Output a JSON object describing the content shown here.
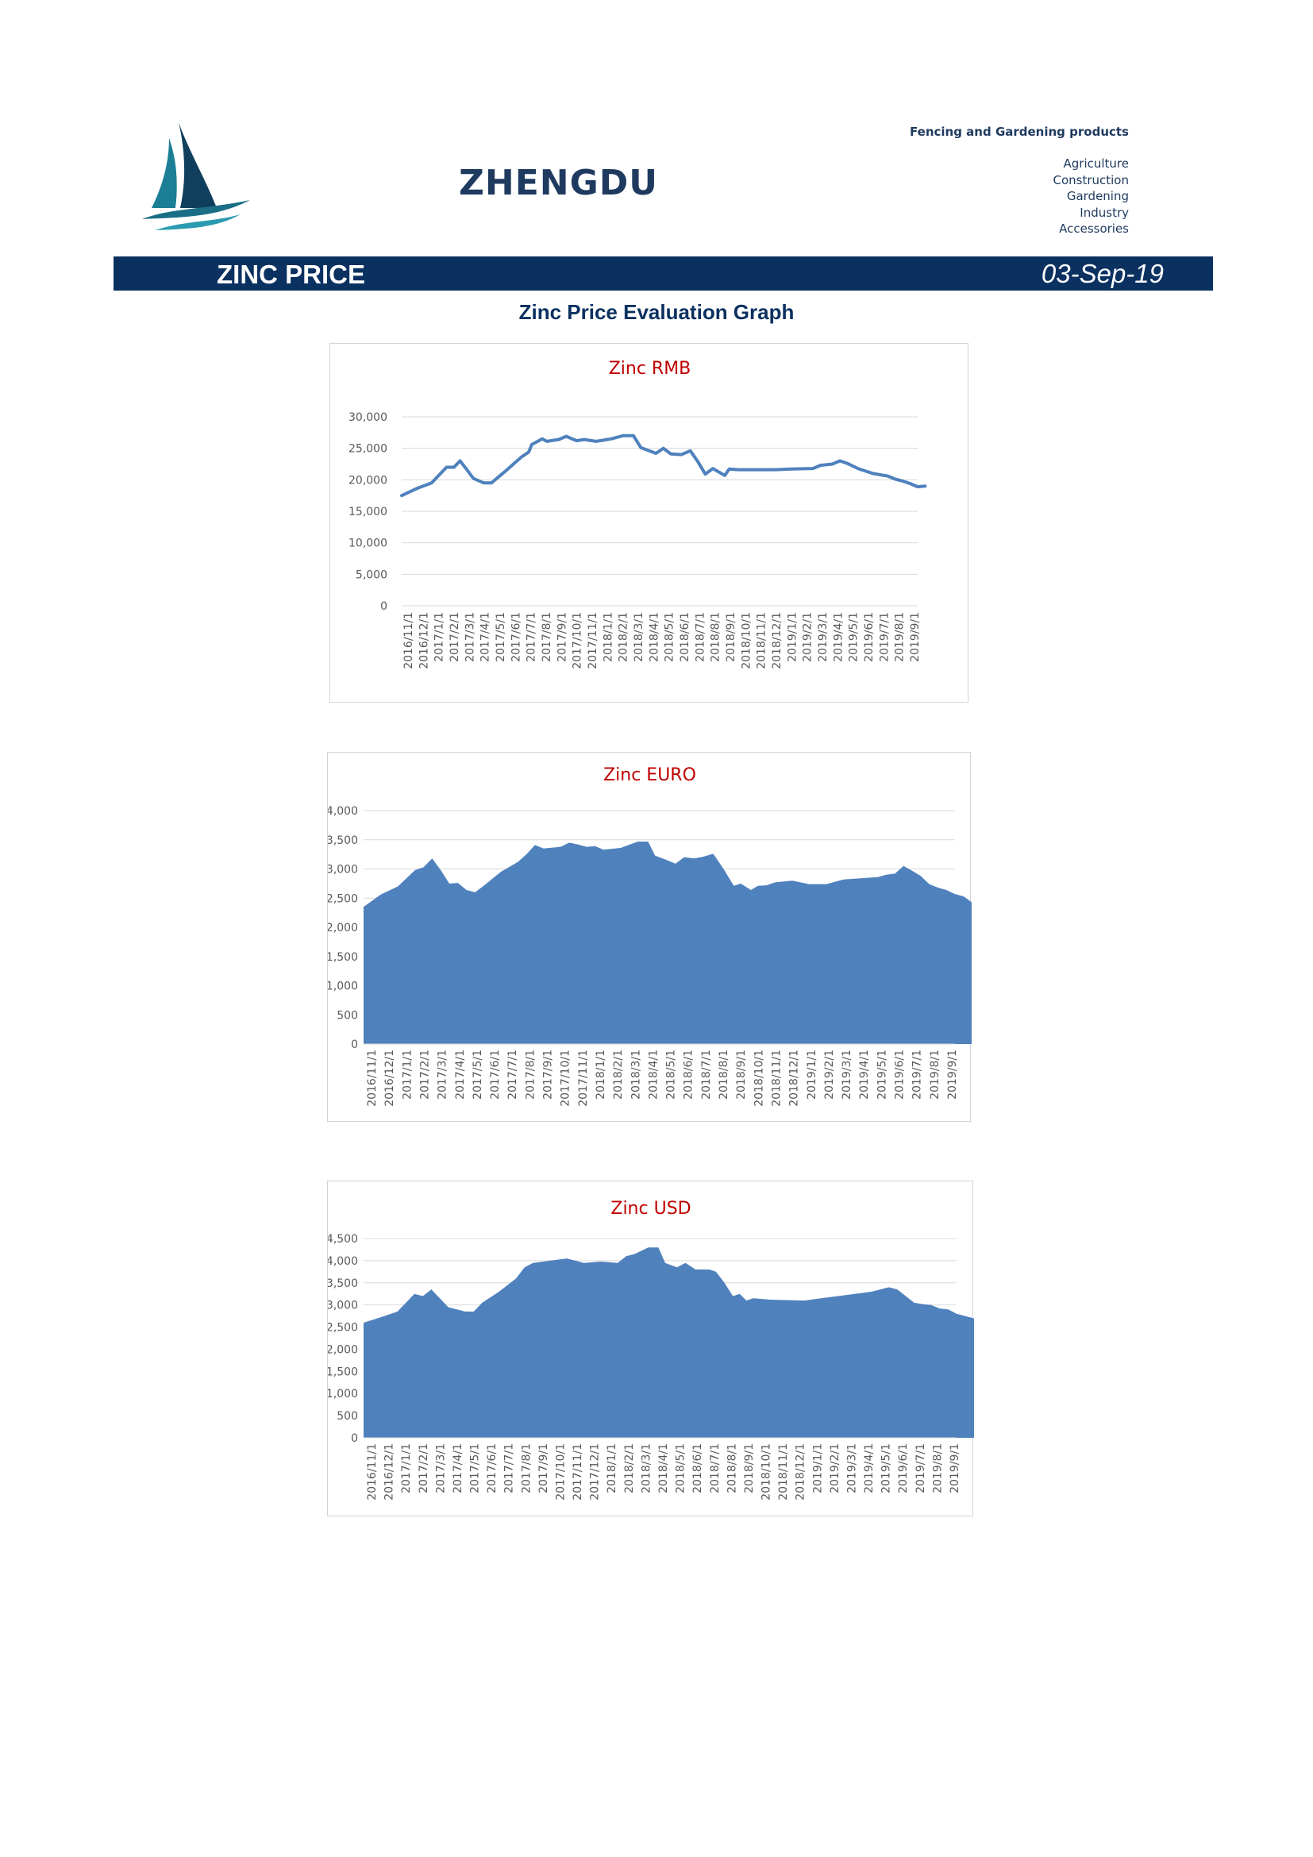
{
  "header": {
    "brand": "ZHENGDU",
    "tagline": "Fencing and Gardening products",
    "categories": [
      "Agriculture",
      "Construction",
      "Gardening",
      "Industry",
      "Accessories"
    ]
  },
  "title_bar": {
    "title": "ZINC PRICE",
    "date": "03-Sep-19"
  },
  "section_title": "Zinc Price Evaluation Graph",
  "colors": {
    "navy": "#0b3161",
    "series": "#4f81bd",
    "chart_title": "#c00000"
  },
  "chart_data": [
    {
      "type": "line",
      "title": "Zinc RMB",
      "categories": [
        "2016/11/1",
        "2016/12/1",
        "2017/1/1",
        "2017/2/1",
        "2017/3/1",
        "2017/4/1",
        "2017/5/1",
        "2017/6/1",
        "2017/7/1",
        "2017/8/1",
        "2017/9/1",
        "2017/10/1",
        "2017/11/1",
        "2018/1/1",
        "2018/2/1",
        "2018/3/1",
        "2018/4/1",
        "2018/5/1",
        "2018/6/1",
        "2018/7/1",
        "2018/8/1",
        "2018/9/1",
        "2018/10/1",
        "2018/11/1",
        "2018/12/1",
        "2019/1/1",
        "2019/2/1",
        "2019/3/1",
        "2019/4/1",
        "2019/5/1",
        "2019/6/1",
        "2019/7/1",
        "2019/8/1",
        "2019/9/1"
      ],
      "x_range": [
        0,
        34.5
      ],
      "series": [
        {
          "values": [
            [
              0,
              17500
            ],
            [
              1,
              18600
            ],
            [
              2,
              19500
            ],
            [
              3,
              22000
            ],
            [
              3.5,
              22000
            ],
            [
              3.9,
              23000
            ],
            [
              4.3,
              21800
            ],
            [
              4.8,
              20200
            ],
            [
              5.5,
              19500
            ],
            [
              6,
              19500
            ],
            [
              7,
              21500
            ],
            [
              8,
              23600
            ],
            [
              8.5,
              24400
            ],
            [
              8.7,
              25600
            ],
            [
              9.4,
              26500
            ],
            [
              9.7,
              26100
            ],
            [
              10.5,
              26400
            ],
            [
              11,
              26900
            ],
            [
              11.7,
              26200
            ],
            [
              12.2,
              26400
            ],
            [
              13,
              26100
            ],
            [
              14,
              26500
            ],
            [
              14.8,
              27000
            ],
            [
              15.5,
              27000
            ],
            [
              16,
              25100
            ],
            [
              17,
              24200
            ],
            [
              17.5,
              25000
            ],
            [
              18,
              24100
            ],
            [
              18.7,
              24000
            ],
            [
              19.3,
              24600
            ],
            [
              19.8,
              22900
            ],
            [
              20.3,
              20900
            ],
            [
              20.8,
              21800
            ],
            [
              21.6,
              20700
            ],
            [
              21.9,
              21700
            ],
            [
              22.5,
              21600
            ],
            [
              25,
              21600
            ],
            [
              26,
              21700
            ],
            [
              27.5,
              21800
            ],
            [
              28,
              22300
            ],
            [
              28.8,
              22500
            ],
            [
              29.3,
              23000
            ],
            [
              29.8,
              22600
            ],
            [
              30.5,
              21800
            ],
            [
              31.5,
              21000
            ],
            [
              32.5,
              20600
            ],
            [
              33,
              20100
            ],
            [
              33.5,
              19800
            ],
            [
              34,
              19400
            ],
            [
              34.5,
              18900
            ],
            [
              35,
              19000
            ]
          ]
        }
      ],
      "ylim": [
        0,
        30000
      ],
      "yticks": [
        {
          "v": 0,
          "label": "0"
        },
        {
          "v": 5000,
          "label": "5,000"
        },
        {
          "v": 10000,
          "label": "10,000"
        },
        {
          "v": 15000,
          "label": "15,000"
        },
        {
          "v": 20000,
          "label": "20,000"
        },
        {
          "v": 25000,
          "label": "25,000"
        },
        {
          "v": 30000,
          "label": "30,000"
        }
      ],
      "grid": true
    },
    {
      "type": "area",
      "title": "Zinc EURO",
      "categories": [
        "2016/11/1",
        "2016/12/1",
        "2017/1/1",
        "2017/2/1",
        "2017/3/1",
        "2017/4/1",
        "2017/5/1",
        "2017/6/1",
        "2017/7/1",
        "2017/8/1",
        "2017/9/1",
        "2017/10/1",
        "2017/11/1",
        "2018/1/1",
        "2018/2/1",
        "2018/3/1",
        "2018/4/1",
        "2018/5/1",
        "2018/6/1",
        "2018/7/1",
        "2018/8/1",
        "2018/9/1",
        "2018/10/1",
        "2018/11/1",
        "2018/12/1",
        "2019/1/1",
        "2019/2/1",
        "2019/3/1",
        "2019/4/1",
        "2019/5/1",
        "2019/6/1",
        "2019/7/1",
        "2019/8/1",
        "2019/9/1"
      ],
      "x_range": [
        0,
        34.5
      ],
      "series": [
        {
          "values": [
            [
              0,
              2350
            ],
            [
              1,
              2560
            ],
            [
              2,
              2700
            ],
            [
              3,
              2980
            ],
            [
              3.5,
              3030
            ],
            [
              4,
              3180
            ],
            [
              4.5,
              2980
            ],
            [
              5,
              2750
            ],
            [
              5.5,
              2760
            ],
            [
              6,
              2640
            ],
            [
              6.5,
              2600
            ],
            [
              7,
              2710
            ],
            [
              8,
              2950
            ],
            [
              9,
              3120
            ],
            [
              9.5,
              3250
            ],
            [
              10,
              3410
            ],
            [
              10.5,
              3350
            ],
            [
              11.5,
              3380
            ],
            [
              12,
              3450
            ],
            [
              12.5,
              3420
            ],
            [
              13,
              3380
            ],
            [
              13.5,
              3390
            ],
            [
              14,
              3330
            ],
            [
              15,
              3360
            ],
            [
              16,
              3470
            ],
            [
              16.6,
              3470
            ],
            [
              17,
              3230
            ],
            [
              17.8,
              3140
            ],
            [
              18.2,
              3090
            ],
            [
              18.7,
              3200
            ],
            [
              19.3,
              3180
            ],
            [
              19.8,
              3210
            ],
            [
              20.4,
              3260
            ],
            [
              21,
              3000
            ],
            [
              21.6,
              2710
            ],
            [
              22,
              2750
            ],
            [
              22.6,
              2640
            ],
            [
              23,
              2710
            ],
            [
              23.5,
              2720
            ],
            [
              24,
              2770
            ],
            [
              25,
              2800
            ],
            [
              26,
              2740
            ],
            [
              27,
              2740
            ],
            [
              28,
              2820
            ],
            [
              29,
              2840
            ],
            [
              30,
              2860
            ],
            [
              30.5,
              2900
            ],
            [
              31,
              2920
            ],
            [
              31.5,
              3050
            ],
            [
              32,
              2970
            ],
            [
              32.5,
              2880
            ],
            [
              33,
              2740
            ],
            [
              33.5,
              2680
            ],
            [
              34,
              2640
            ],
            [
              34.5,
              2570
            ],
            [
              35,
              2530
            ],
            [
              35.3,
              2470
            ],
            [
              35.5,
              2420
            ]
          ]
        }
      ],
      "ylim": [
        0,
        4000
      ],
      "yticks": [
        {
          "v": 0,
          "label": "0"
        },
        {
          "v": 500,
          "label": "500"
        },
        {
          "v": 1000,
          "label": "1,000"
        },
        {
          "v": 1500,
          "label": "1,500"
        },
        {
          "v": 2000,
          "label": "2,000"
        },
        {
          "v": 2500,
          "label": "2,500"
        },
        {
          "v": 3000,
          "label": "3,000"
        },
        {
          "v": 3500,
          "label": "3,500"
        },
        {
          "v": 4000,
          "label": "4,000"
        }
      ],
      "grid": true
    },
    {
      "type": "area",
      "title": "Zinc USD",
      "categories": [
        "2016/11/1",
        "2016/12/1",
        "2017/1/1",
        "2017/2/1",
        "2017/3/1",
        "2017/4/1",
        "2017/5/1",
        "2017/6/1",
        "2017/7/1",
        "2017/8/1",
        "2017/9/1",
        "2017/10/1",
        "2017/11/1",
        "2017/12/1",
        "2018/1/1",
        "2018/2/1",
        "2018/3/1",
        "2018/4/1",
        "2018/5/1",
        "2018/6/1",
        "2018/7/1",
        "2018/8/1",
        "2018/9/1",
        "2018/10/1",
        "2018/11/1",
        "2018/12/1",
        "2019/1/1",
        "2019/2/1",
        "2019/3/1",
        "2019/4/1",
        "2019/5/1",
        "2019/6/1",
        "2019/7/1",
        "2019/8/1",
        "2019/9/1"
      ],
      "x_range": [
        0,
        35
      ],
      "series": [
        {
          "values": [
            [
              0,
              2600
            ],
            [
              1,
              2720
            ],
            [
              2,
              2850
            ],
            [
              3,
              3250
            ],
            [
              3.5,
              3200
            ],
            [
              4,
              3350
            ],
            [
              4.5,
              3150
            ],
            [
              5,
              2950
            ],
            [
              5.5,
              2900
            ],
            [
              6,
              2850
            ],
            [
              6.5,
              2850
            ],
            [
              7,
              3050
            ],
            [
              8,
              3300
            ],
            [
              9,
              3600
            ],
            [
              9.5,
              3850
            ],
            [
              10,
              3950
            ],
            [
              11,
              4000
            ],
            [
              12,
              4050
            ],
            [
              12.5,
              4000
            ],
            [
              13,
              3950
            ],
            [
              14,
              3980
            ],
            [
              15,
              3950
            ],
            [
              15.5,
              4100
            ],
            [
              16,
              4150
            ],
            [
              16.8,
              4300
            ],
            [
              17.4,
              4300
            ],
            [
              17.8,
              3950
            ],
            [
              18.5,
              3850
            ],
            [
              19,
              3950
            ],
            [
              19.6,
              3800
            ],
            [
              20.4,
              3800
            ],
            [
              20.8,
              3750
            ],
            [
              21.3,
              3500
            ],
            [
              21.8,
              3200
            ],
            [
              22.2,
              3250
            ],
            [
              22.6,
              3100
            ],
            [
              23,
              3150
            ],
            [
              24,
              3120
            ],
            [
              26,
              3100
            ],
            [
              27,
              3150
            ],
            [
              28,
              3200
            ],
            [
              29,
              3250
            ],
            [
              30,
              3300
            ],
            [
              31,
              3400
            ],
            [
              31.5,
              3350
            ],
            [
              32,
              3200
            ],
            [
              32.5,
              3050
            ],
            [
              33,
              3020
            ],
            [
              33.5,
              3000
            ],
            [
              34,
              2920
            ],
            [
              34.5,
              2900
            ],
            [
              35,
              2800
            ],
            [
              35.5,
              2750
            ],
            [
              36,
              2700
            ],
            [
              36.3,
              2650
            ],
            [
              36.5,
              2600
            ]
          ]
        }
      ],
      "ylim": [
        0,
        4500
      ],
      "yticks": [
        {
          "v": 0,
          "label": "0"
        },
        {
          "v": 500,
          "label": "500"
        },
        {
          "v": 1000,
          "label": "1,000"
        },
        {
          "v": 1500,
          "label": "1,500"
        },
        {
          "v": 2000,
          "label": "2,000"
        },
        {
          "v": 2500,
          "label": "2,500"
        },
        {
          "v": 3000,
          "label": "3,000"
        },
        {
          "v": 3500,
          "label": "3,500"
        },
        {
          "v": 4000,
          "label": "4,000"
        },
        {
          "v": 4500,
          "label": "4,500"
        }
      ],
      "grid": true
    }
  ]
}
